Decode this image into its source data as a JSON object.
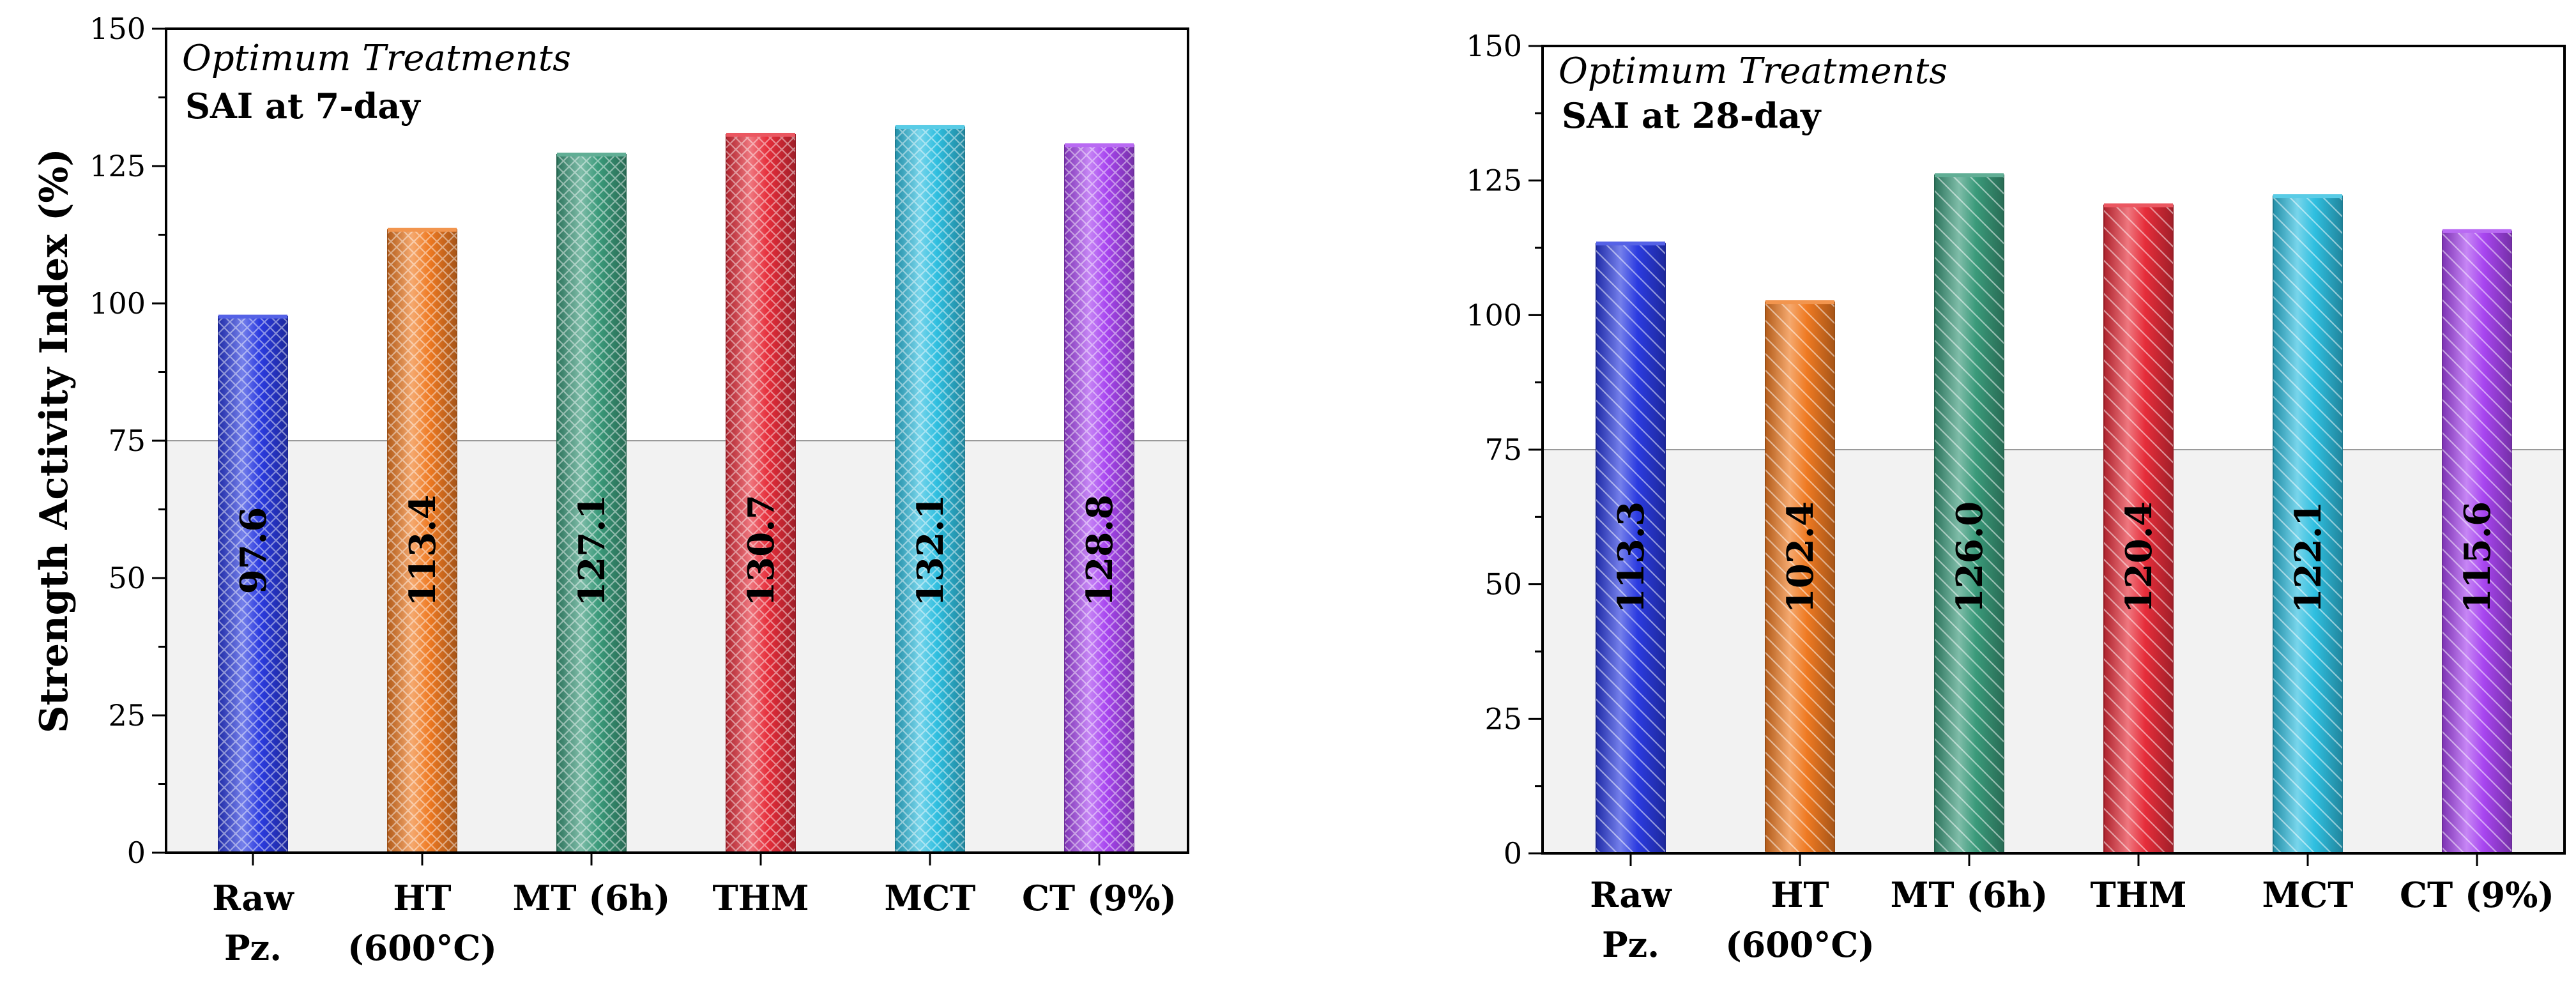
{
  "figure": {
    "ylabel": "Strength Activity Index (%)"
  },
  "chart_data": [
    {
      "type": "bar",
      "title": "Optimum Treatments",
      "subtitle": "SAI at 7-day",
      "ylabel": "Strength Activity Index (%)",
      "xlabel": "",
      "ylim": [
        0,
        150
      ],
      "yticks": [
        0,
        25,
        50,
        75,
        100,
        125,
        150
      ],
      "reference_line": 75,
      "categories": [
        [
          "Raw",
          "Pz."
        ],
        [
          "HT",
          "(600°C)"
        ],
        [
          "MT (6h)"
        ],
        [
          "THM"
        ],
        [
          "MCT"
        ],
        [
          "CT (9%)"
        ]
      ],
      "values": [
        97.6,
        113.4,
        127.1,
        130.7,
        132.1,
        128.8
      ],
      "value_labels": [
        "97.6",
        "113.4",
        "127.1",
        "130.7",
        "132.1",
        "128.8"
      ],
      "colors": [
        "#2b3be0",
        "#ef7a22",
        "#3a9a7a",
        "#e62d3a",
        "#2fbfe0",
        "#a845f0"
      ],
      "pattern": "crosshatch"
    },
    {
      "type": "bar",
      "title": "Optimum Treatments",
      "subtitle": "SAI at 28-day",
      "ylabel": "",
      "xlabel": "",
      "ylim": [
        0,
        150
      ],
      "yticks": [
        0,
        25,
        50,
        75,
        100,
        125,
        150
      ],
      "reference_line": 75,
      "categories": [
        [
          "Raw",
          "Pz."
        ],
        [
          "HT",
          "(600°C)"
        ],
        [
          "MT (6h)"
        ],
        [
          "THM"
        ],
        [
          "MCT"
        ],
        [
          "CT (9%)"
        ]
      ],
      "values": [
        113.3,
        102.4,
        126.0,
        120.4,
        122.1,
        115.6
      ],
      "value_labels": [
        "113.3",
        "102.4",
        "126.0",
        "120.4",
        "122.1",
        "115.6"
      ],
      "colors": [
        "#2b3be0",
        "#ef7a22",
        "#3a9a7a",
        "#e62d3a",
        "#2fbfe0",
        "#a845f0"
      ],
      "pattern": "diagonal"
    }
  ]
}
